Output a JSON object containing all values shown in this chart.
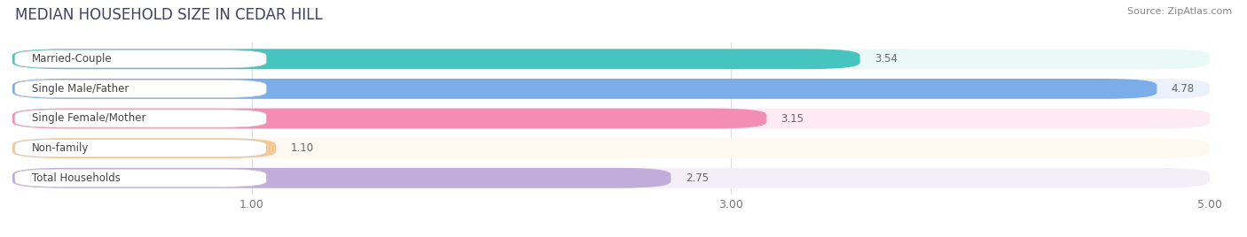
{
  "title": "MEDIAN HOUSEHOLD SIZE IN CEDAR HILL",
  "source": "Source: ZipAtlas.com",
  "categories": [
    "Married-Couple",
    "Single Male/Father",
    "Single Female/Mother",
    "Non-family",
    "Total Households"
  ],
  "values": [
    3.54,
    4.78,
    3.15,
    1.1,
    2.75
  ],
  "value_labels": [
    "3.54",
    "4.78",
    "3.15",
    "1.10",
    "2.75"
  ],
  "bar_colors": [
    "#45C4C0",
    "#7BAEE8",
    "#F48DB4",
    "#F5C896",
    "#C0ADDA"
  ],
  "bar_bg_colors": [
    "#EAF8F8",
    "#EBF2FC",
    "#FDEAF3",
    "#FEF8F0",
    "#F3EEF8"
  ],
  "label_text_colors": [
    "#555555",
    "#555555",
    "#555555",
    "#555555",
    "#555555"
  ],
  "xlim": [
    0,
    5.0
  ],
  "xticks": [
    1.0,
    3.0,
    5.0
  ],
  "xtick_labels": [
    "1.00",
    "3.00",
    "5.00"
  ],
  "value_fontsize": 8.5,
  "label_fontsize": 8.5,
  "title_fontsize": 12,
  "background_color": "#FFFFFF"
}
